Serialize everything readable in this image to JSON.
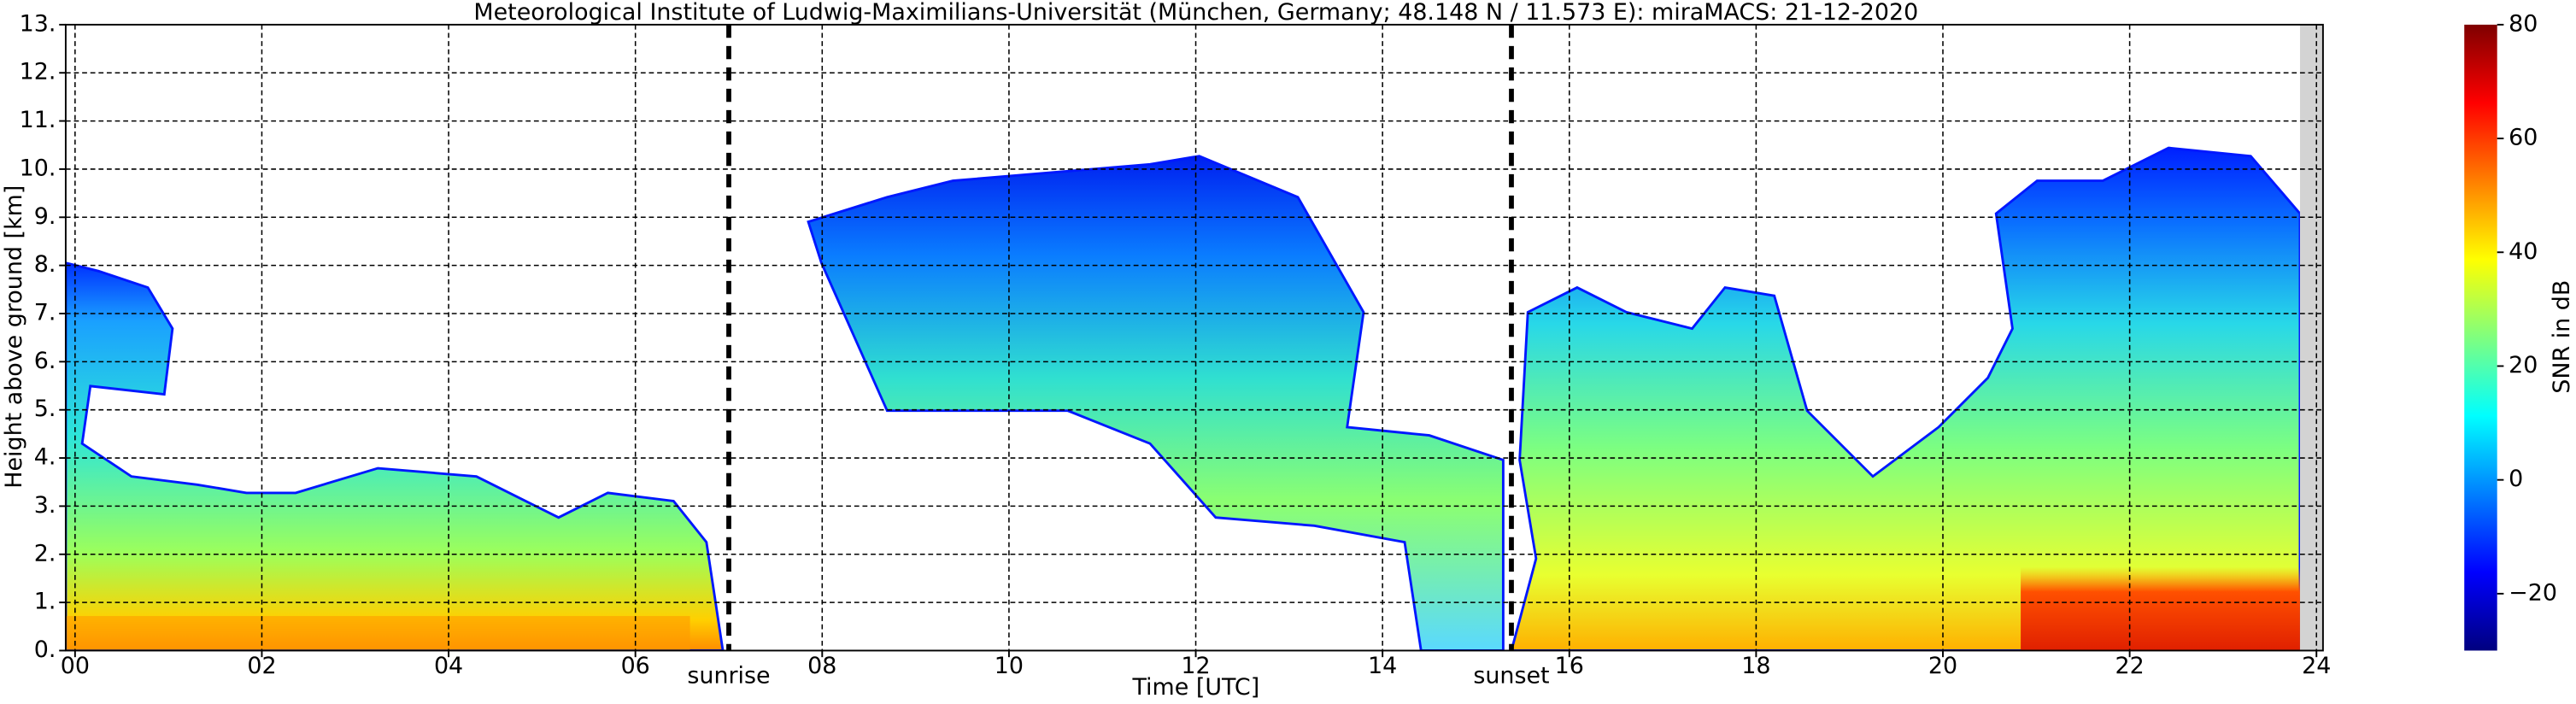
{
  "chart_data": {
    "type": "heatmap",
    "title": "Meteorological Institute of Ludwig-Maximilians-Universität (München, Germany; 48.148 N / 11.573 E):    miraMACS: 21-12-2020",
    "xlabel": "Time [UTC]",
    "ylabel": "Height above ground [km]",
    "xlim": [
      -0.1,
      24.07
    ],
    "xticks": [
      {
        "value": 0,
        "label": "00"
      },
      {
        "value": 2,
        "label": "02"
      },
      {
        "value": 4,
        "label": "04"
      },
      {
        "value": 6,
        "label": "06"
      },
      {
        "value": 8,
        "label": "08"
      },
      {
        "value": 10,
        "label": "10"
      },
      {
        "value": 12,
        "label": "12"
      },
      {
        "value": 14,
        "label": "14"
      },
      {
        "value": 16,
        "label": "16"
      },
      {
        "value": 18,
        "label": "18"
      },
      {
        "value": 20,
        "label": "20"
      },
      {
        "value": 22,
        "label": "22"
      },
      {
        "value": 24,
        "label": "24"
      }
    ],
    "ylim": [
      0,
      13
    ],
    "yticks": [
      {
        "value": 0,
        "label": "0."
      },
      {
        "value": 1,
        "label": "1."
      },
      {
        "value": 2,
        "label": "2."
      },
      {
        "value": 3,
        "label": "3."
      },
      {
        "value": 4,
        "label": "4."
      },
      {
        "value": 5,
        "label": "5."
      },
      {
        "value": 6,
        "label": "6."
      },
      {
        "value": 7,
        "label": "7."
      },
      {
        "value": 8,
        "label": "8."
      },
      {
        "value": 9,
        "label": "9."
      },
      {
        "value": 10,
        "label": "10."
      },
      {
        "value": 11,
        "label": "11."
      },
      {
        "value": 12,
        "label": "12."
      },
      {
        "value": 13,
        "label": "13."
      }
    ],
    "grid": true,
    "annotations": [
      {
        "text": "sunrise",
        "x": 7.0
      },
      {
        "text": "sunset",
        "x": 15.38
      }
    ],
    "colorbar": {
      "label": "SNR in dB",
      "colormap": "jet",
      "clim": [
        -30,
        80
      ],
      "ticks": [
        {
          "value": -20,
          "label": "−20"
        },
        0,
        20,
        40,
        60,
        80
      ]
    }
  }
}
